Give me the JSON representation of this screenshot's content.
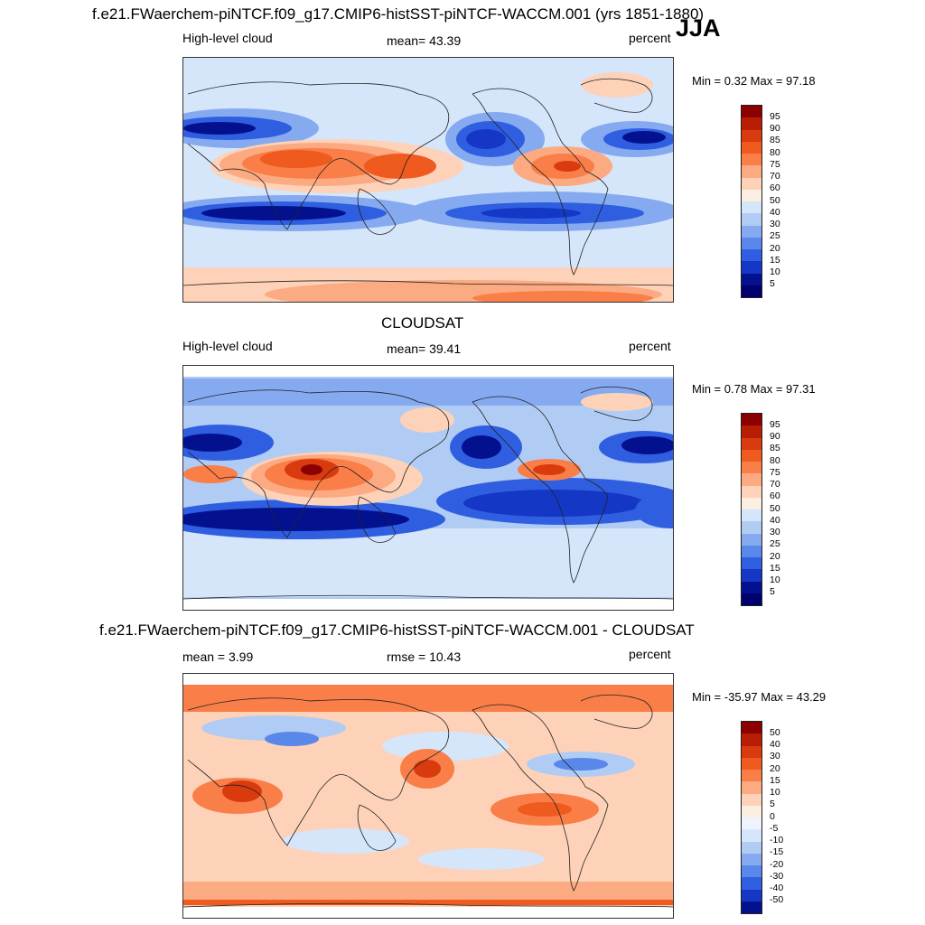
{
  "season": "JJA",
  "panels": [
    {
      "title": "f.e21.FWaerchem-piNTCF.f09_g17.CMIP6-histSST-piNTCF-WACCM.001 (yrs 1851-1880)",
      "left_label": "High-level cloud",
      "center_label": "mean=  43.39",
      "right_label": "percent",
      "minmax": "Min =   0.32 Max =  97.18",
      "colorbar_labels": [
        "95",
        "90",
        "85",
        "80",
        "75",
        "70",
        "60",
        "50",
        "40",
        "30",
        "25",
        "20",
        "15",
        "10",
        "5"
      ]
    },
    {
      "title": "CLOUDSAT",
      "left_label": "High-level cloud",
      "center_label": "mean=  39.41",
      "right_label": "percent",
      "minmax": "Min =   0.78 Max =  97.31",
      "colorbar_labels": [
        "95",
        "90",
        "85",
        "80",
        "75",
        "70",
        "60",
        "50",
        "40",
        "30",
        "25",
        "20",
        "15",
        "10",
        "5"
      ]
    },
    {
      "title": "f.e21.FWaerchem-piNTCF.f09_g17.CMIP6-histSST-piNTCF-WACCM.001 - CLOUDSAT",
      "left_label": "mean =   3.99",
      "center_label": "rmse =  10.43",
      "right_label": "percent",
      "minmax": "Min = -35.97 Max =  43.29",
      "colorbar_labels": [
        "50",
        "40",
        "30",
        "20",
        "15",
        "10",
        "5",
        "0",
        "-5",
        "-10",
        "-15",
        "-20",
        "-30",
        "-40",
        "-50"
      ]
    }
  ],
  "colors": {
    "abs_scale": [
      "#8b0000",
      "#b81e05",
      "#d93a0e",
      "#ef5a1e",
      "#fa7e48",
      "#fcaa82",
      "#fdd2b8",
      "#fdeee2",
      "#d5e6fb",
      "#b0ccf4",
      "#86aaf0",
      "#5a87ea",
      "#2f5fe0",
      "#1437c5",
      "#04118f",
      "#00006e"
    ],
    "diff_scale": [
      "#8b0000",
      "#b81e05",
      "#d93a0e",
      "#ef5a1e",
      "#fa7e48",
      "#fcaa82",
      "#fdd2b8",
      "#fdeee2",
      "#eef3fe",
      "#d5e6fb",
      "#b0ccf4",
      "#86aaf0",
      "#5a87ea",
      "#2f5fe0",
      "#1437c5",
      "#04118f",
      "#00006e"
    ]
  }
}
